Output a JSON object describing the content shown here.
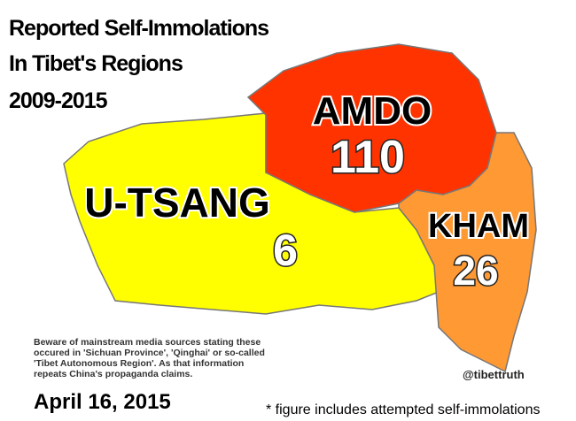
{
  "header": {
    "title_lines": [
      "Reported Self-Immolations",
      "In Tibet's Regions",
      "2009-2015"
    ]
  },
  "regions": [
    {
      "name": "U-TSANG",
      "count": 6
    },
    {
      "name": "AMDO",
      "count": 110
    },
    {
      "name": "KHAM",
      "count": 26
    }
  ],
  "note": [
    "Beware of mainstream media sources stating these",
    "occured in 'Sichuan Province', 'Qinghai' or so-called",
    "'Tibet Autonomous Region'. As that information",
    "repeats China's propaganda claims."
  ],
  "date": "April 16, 2015",
  "handle": "@tibettruth",
  "footnote": "* figure includes attempted self-immolations"
}
